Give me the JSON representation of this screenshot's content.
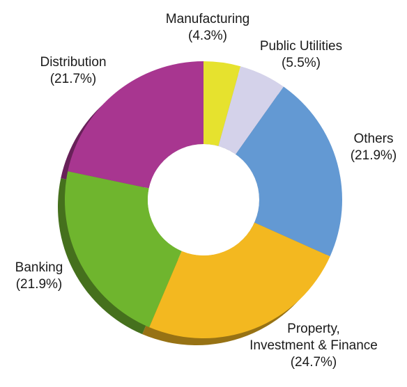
{
  "chart_data": {
    "type": "pie",
    "variant": "donut",
    "start": "12 o'clock",
    "direction": "clockwise",
    "title": "",
    "slices": [
      {
        "label": "Manufacturing",
        "pct_label": "(4.3%)",
        "value": 4.3,
        "color": "#e6e22e"
      },
      {
        "label": "Public Utilities",
        "pct_label": "(5.5%)",
        "value": 5.5,
        "color": "#d4d2ea"
      },
      {
        "label": "Others",
        "pct_label": "(21.9%)",
        "value": 21.9,
        "color": "#6399d3"
      },
      {
        "label": "Property,\nInvestment & Finance",
        "pct_label": "(24.7%)",
        "value": 24.7,
        "color": "#f3b820"
      },
      {
        "label": "Banking",
        "pct_label": "(21.9%)",
        "value": 21.9,
        "color": "#6fb52e"
      },
      {
        "label": "Distribution",
        "pct_label": "(21.7%)",
        "value": 21.7,
        "color": "#a83690"
      }
    ]
  }
}
